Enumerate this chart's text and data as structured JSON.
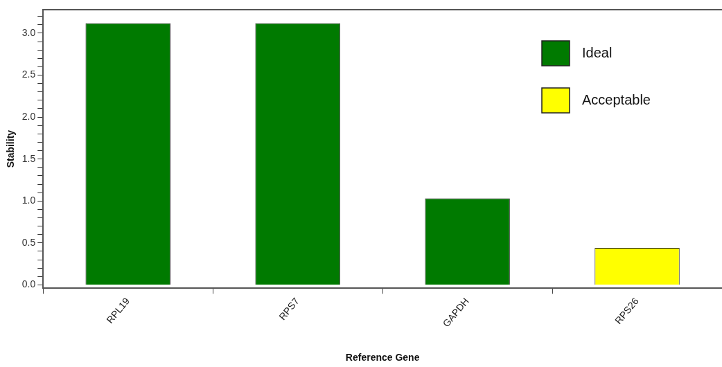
{
  "chart_data": {
    "type": "bar",
    "xlabel": "Reference Gene",
    "ylabel": "Stability",
    "categories": [
      "RPL19",
      "RPS7",
      "GAPDH",
      "RPS26"
    ],
    "stacked": true,
    "series": [
      {
        "name": "Ideal",
        "color": "#007a00",
        "values": [
          3.12,
          3.12,
          1.03,
          null
        ]
      },
      {
        "name": "Acceptable",
        "color": "#ffff00",
        "values": [
          null,
          null,
          null,
          0.44
        ]
      }
    ],
    "ylim": [
      -0.04,
      3.28
    ],
    "yticks": [
      {
        "value": 0,
        "label": "0.0"
      },
      {
        "value": 0.1,
        "label": null
      },
      {
        "value": 0.2,
        "label": null
      },
      {
        "value": 0.3,
        "label": null
      },
      {
        "value": 0.4,
        "label": null
      },
      {
        "value": 0.5,
        "label": "0.5"
      },
      {
        "value": 0.6,
        "label": null
      },
      {
        "value": 0.7,
        "label": null
      },
      {
        "value": 0.8,
        "label": null
      },
      {
        "value": 0.9,
        "label": null
      },
      {
        "value": 1,
        "label": "1.0"
      },
      {
        "value": 1.1,
        "label": null
      },
      {
        "value": 1.2,
        "label": null
      },
      {
        "value": 1.3,
        "label": null
      },
      {
        "value": 1.4,
        "label": null
      },
      {
        "value": 1.5,
        "label": "1.5"
      },
      {
        "value": 1.6,
        "label": null
      },
      {
        "value": 1.7,
        "label": null
      },
      {
        "value": 1.8,
        "label": null
      },
      {
        "value": 1.9,
        "label": null
      },
      {
        "value": 2,
        "label": "2.0"
      },
      {
        "value": 2.1,
        "label": null
      },
      {
        "value": 2.2,
        "label": null
      },
      {
        "value": 2.3,
        "label": null
      },
      {
        "value": 2.4,
        "label": null
      },
      {
        "value": 2.5,
        "label": "2.5"
      },
      {
        "value": 2.6,
        "label": null
      },
      {
        "value": 2.7,
        "label": null
      },
      {
        "value": 2.8,
        "label": null
      },
      {
        "value": 2.9,
        "label": null
      },
      {
        "value": 3,
        "label": "3.0"
      },
      {
        "value": 3.1,
        "label": null
      },
      {
        "value": 3.2,
        "label": null
      }
    ],
    "grid": false,
    "legend": "top right"
  }
}
